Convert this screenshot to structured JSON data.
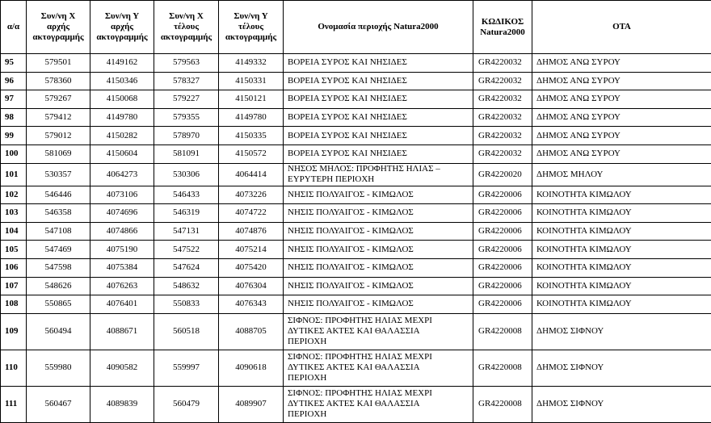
{
  "table": {
    "header": [
      [
        "α/α"
      ],
      [
        "Συν/νη Χ",
        "αρχής",
        "ακτογραμμής"
      ],
      [
        "Συν/νη Υ",
        "αρχής",
        "ακτογραμμής"
      ],
      [
        "Συν/νη Χ",
        "τέλους",
        "ακτογραμμής"
      ],
      [
        "Συν/νη Υ",
        "τέλους",
        "ακτογραμμής"
      ],
      [
        "Ονομασία περιοχής Natura2000"
      ],
      [
        "ΚΩΔΙΚΟΣ",
        "Natura2000"
      ],
      [
        "ΟΤΑ"
      ]
    ],
    "rows": [
      [
        95,
        579501,
        4149162,
        579563,
        4149332,
        "ΒΟΡΕΙΑ ΣΥΡΟΣ ΚΑΙ ΝΗΣΙΔΕΣ",
        "GR4220032",
        "ΔΗΜΟΣ ΑΝΩ ΣΥΡΟΥ"
      ],
      [
        96,
        578360,
        4150346,
        578327,
        4150331,
        "ΒΟΡΕΙΑ ΣΥΡΟΣ ΚΑΙ ΝΗΣΙΔΕΣ",
        "GR4220032",
        "ΔΗΜΟΣ ΑΝΩ ΣΥΡΟΥ"
      ],
      [
        97,
        579267,
        4150068,
        579227,
        4150121,
        "ΒΟΡΕΙΑ ΣΥΡΟΣ ΚΑΙ ΝΗΣΙΔΕΣ",
        "GR4220032",
        "ΔΗΜΟΣ ΑΝΩ ΣΥΡΟΥ"
      ],
      [
        98,
        579412,
        4149780,
        579355,
        4149780,
        "ΒΟΡΕΙΑ ΣΥΡΟΣ ΚΑΙ ΝΗΣΙΔΕΣ",
        "GR4220032",
        "ΔΗΜΟΣ ΑΝΩ ΣΥΡΟΥ"
      ],
      [
        99,
        579012,
        4150282,
        578970,
        4150335,
        "ΒΟΡΕΙΑ ΣΥΡΟΣ ΚΑΙ ΝΗΣΙΔΕΣ",
        "GR4220032",
        "ΔΗΜΟΣ ΑΝΩ ΣΥΡΟΥ"
      ],
      [
        100,
        581069,
        4150604,
        581091,
        4150572,
        "ΒΟΡΕΙΑ ΣΥΡΟΣ ΚΑΙ ΝΗΣΙΔΕΣ",
        "GR4220032",
        "ΔΗΜΟΣ ΑΝΩ ΣΥΡΟΥ"
      ],
      [
        101,
        530357,
        4064273,
        530306,
        4064414,
        "ΝΗΣΟΣ ΜΗΛΟΣ: ΠΡΟΦΗΤΗΣ ΗΛΙΑΣ – ΕΥΡΥΤΕΡΗ ΠΕΡΙΟΧΗ",
        "GR4220020",
        "ΔΗΜΟΣ ΜΗΛΟΥ"
      ],
      [
        102,
        546446,
        4073106,
        546433,
        4073226,
        "ΝΗΣΙΣ ΠΟΛΥΑΙΓΟΣ - ΚΙΜΩΛΟΣ",
        "GR4220006",
        "ΚΟΙΝΟΤΗΤΑ ΚΙΜΩΛΟΥ"
      ],
      [
        103,
        546358,
        4074696,
        546319,
        4074722,
        "ΝΗΣΙΣ ΠΟΛΥΑΙΓΟΣ - ΚΙΜΩΛΟΣ",
        "GR4220006",
        "ΚΟΙΝΟΤΗΤΑ ΚΙΜΩΛΟΥ"
      ],
      [
        104,
        547108,
        4074866,
        547131,
        4074876,
        "ΝΗΣΙΣ ΠΟΛΥΑΙΓΟΣ - ΚΙΜΩΛΟΣ",
        "GR4220006",
        "ΚΟΙΝΟΤΗΤΑ ΚΙΜΩΛΟΥ"
      ],
      [
        105,
        547469,
        4075190,
        547522,
        4075214,
        "ΝΗΣΙΣ ΠΟΛΥΑΙΓΟΣ - ΚΙΜΩΛΟΣ",
        "GR4220006",
        "ΚΟΙΝΟΤΗΤΑ ΚΙΜΩΛΟΥ"
      ],
      [
        106,
        547598,
        4075384,
        547624,
        4075420,
        "ΝΗΣΙΣ ΠΟΛΥΑΙΓΟΣ - ΚΙΜΩΛΟΣ",
        "GR4220006",
        "ΚΟΙΝΟΤΗΤΑ ΚΙΜΩΛΟΥ"
      ],
      [
        107,
        548626,
        4076263,
        548632,
        4076304,
        "ΝΗΣΙΣ ΠΟΛΥΑΙΓΟΣ - ΚΙΜΩΛΟΣ",
        "GR4220006",
        "ΚΟΙΝΟΤΗΤΑ ΚΙΜΩΛΟΥ"
      ],
      [
        108,
        550865,
        4076401,
        550833,
        4076343,
        "ΝΗΣΙΣ ΠΟΛΥΑΙΓΟΣ - ΚΙΜΩΛΟΣ",
        "GR4220006",
        "ΚΟΙΝΟΤΗΤΑ ΚΙΜΩΛΟΥ"
      ],
      [
        109,
        560494,
        4088671,
        560518,
        4088705,
        "ΣΙΦΝΟΣ: ΠΡΟΦΗΤΗΣ ΗΛΙΑΣ ΜΕΧΡΙ ΔΥΤΙΚΕΣ ΑΚΤΕΣ ΚΑΙ ΘΑΛΑΣΣΙΑ ΠΕΡΙΟΧΗ",
        "GR4220008",
        "ΔΗΜΟΣ ΣΙΦΝΟΥ"
      ],
      [
        110,
        559980,
        4090582,
        559997,
        4090618,
        "ΣΙΦΝΟΣ: ΠΡΟΦΗΤΗΣ ΗΛΙΑΣ ΜΕΧΡΙ ΔΥΤΙΚΕΣ ΑΚΤΕΣ ΚΑΙ ΘΑΛΑΣΣΙΑ ΠΕΡΙΟΧΗ",
        "GR4220008",
        "ΔΗΜΟΣ ΣΙΦΝΟΥ"
      ],
      [
        111,
        560467,
        4089839,
        560479,
        4089907,
        "ΣΙΦΝΟΣ: ΠΡΟΦΗΤΗΣ ΗΛΙΑΣ ΜΕΧΡΙ ΔΥΤΙΚΕΣ ΑΚΤΕΣ ΚΑΙ ΘΑΛΑΣΣΙΑ ΠΕΡΙΟΧΗ",
        "GR4220008",
        "ΔΗΜΟΣ ΣΙΦΝΟΥ"
      ]
    ]
  }
}
